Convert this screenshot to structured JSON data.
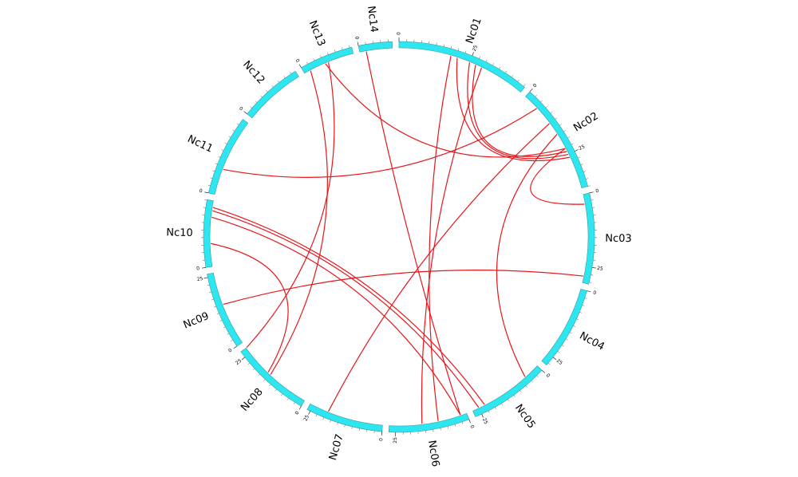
{
  "chromosomes": [
    {
      "name": "Nc01",
      "ticks": [
        0,
        25
      ]
    },
    {
      "name": "Nc02",
      "ticks": [
        0,
        25
      ]
    },
    {
      "name": "Nc03",
      "ticks": [
        0,
        25
      ]
    },
    {
      "name": "Nc04",
      "ticks": [
        0,
        25
      ]
    },
    {
      "name": "Nc05",
      "ticks": [
        0,
        25
      ]
    },
    {
      "name": "Nc06",
      "ticks": [
        0,
        25
      ]
    },
    {
      "name": "Nc07",
      "ticks": [
        0,
        25
      ]
    },
    {
      "name": "Nc08",
      "ticks": [
        0,
        25
      ]
    },
    {
      "name": "Nc09",
      "ticks": [
        0,
        25
      ]
    },
    {
      "name": "Nc10",
      "ticks": [
        0
      ]
    },
    {
      "name": "Nc11",
      "ticks": [
        0
      ]
    },
    {
      "name": "Nc12",
      "ticks": [
        0
      ]
    },
    {
      "name": "Nc13",
      "ticks": [
        0
      ]
    },
    {
      "name": "Nc14",
      "ticks": [
        0
      ]
    }
  ]
}
